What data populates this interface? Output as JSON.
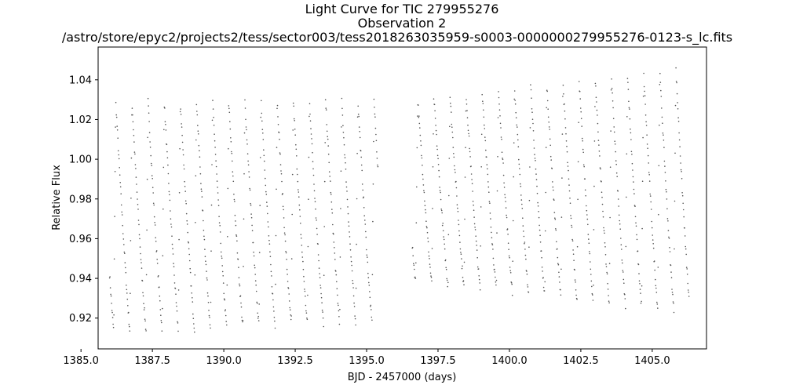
{
  "chart_data": {
    "type": "scatter",
    "title": "Light Curve for TIC 279955276",
    "subtitle": "Observation 2",
    "file": "/astro/store/epyc2/projects2/tess/sector003/tess2018263035959-s0003-0000000279955276-0123-s_lc.fits",
    "xlabel": "BJD - 2457000 (days)",
    "ylabel": "Relative Flux",
    "xlim": [
      1385.6,
      1406.9
    ],
    "ylim": [
      0.9045,
      1.0565
    ],
    "xticks": [
      1385.0,
      1387.5,
      1390.0,
      1392.5,
      1395.0,
      1397.5,
      1400.0,
      1402.5,
      1405.0
    ],
    "xtick_labels": [
      "1385.0",
      "1387.5",
      "1390.0",
      "1392.5",
      "1395.0",
      "1397.5",
      "1400.0",
      "1402.5",
      "1405.0"
    ],
    "yticks": [
      0.92,
      0.94,
      0.96,
      0.98,
      1.0,
      1.02,
      1.04
    ],
    "ytick_labels": [
      "0.92",
      "0.94",
      "0.96",
      "0.98",
      "1.00",
      "1.02",
      "1.04"
    ],
    "grid": false,
    "marker_color": "#555555",
    "series": [
      {
        "segments": [
          {
            "x_range": [
              1386.0,
              1395.4
            ],
            "period": 0.565,
            "phase0": 1386.15,
            "min_start": 0.913,
            "min_end": 0.918,
            "max_start": 1.029,
            "max_end": 1.03
          },
          {
            "x_range": [
              1396.6,
              1406.3
            ],
            "period": 0.565,
            "phase0": 1396.72,
            "min_start": 0.938,
            "min_end": 0.923,
            "max_start": 1.03,
            "max_end": 1.046
          }
        ]
      }
    ]
  }
}
